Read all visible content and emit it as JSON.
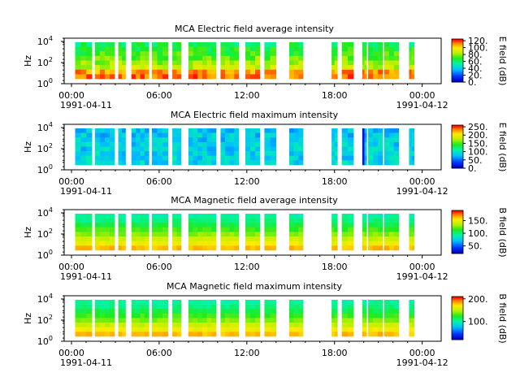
{
  "figure": {
    "instrument": "MCA"
  },
  "chart_data": [
    {
      "type": "heatmap",
      "title": "MCA  Electric field average intensity",
      "ylabel": "Hz",
      "y_scale": "log",
      "y_ticks": [
        "10^0",
        "10^2",
        "10^4"
      ],
      "x_ticks": [
        "00:00",
        "06:00",
        "12:00",
        "18:00",
        "00:00"
      ],
      "x_dates": [
        "1991-04-11",
        "1991-04-12"
      ],
      "colorbar": {
        "label": "E field (dB)",
        "ticks": [
          "0.",
          "20.",
          "40.",
          "60.",
          "80.",
          "100.",
          "120."
        ],
        "range": [
          0,
          125
        ]
      },
      "level": "mid-high"
    },
    {
      "type": "heatmap",
      "title": "MCA  Electric field maximum intensity",
      "ylabel": "Hz",
      "y_scale": "log",
      "y_ticks": [
        "10^0",
        "10^2",
        "10^4"
      ],
      "x_ticks": [
        "00:00",
        "06:00",
        "12:00",
        "18:00",
        "00:00"
      ],
      "x_dates": [
        "1991-04-11",
        "1991-04-12"
      ],
      "colorbar": {
        "label": "E field (dB)",
        "ticks": [
          "0.",
          "50.",
          "100.",
          "150.",
          "200.",
          "250."
        ],
        "range": [
          0,
          260
        ]
      },
      "level": "low"
    },
    {
      "type": "heatmap",
      "title": "MCA  Magnetic field average intensity",
      "ylabel": "Hz",
      "y_scale": "log",
      "y_ticks": [
        "10^0",
        "10^2",
        "10^4"
      ],
      "x_ticks": [
        "00:00",
        "06:00",
        "12:00",
        "18:00",
        "00:00"
      ],
      "x_dates": [
        "1991-04-11",
        "1991-04-12"
      ],
      "colorbar": {
        "label": "B field (dB)",
        "ticks": [
          "50.",
          "100.",
          "150."
        ],
        "range": [
          20,
          190
        ]
      },
      "level": "mid"
    },
    {
      "type": "heatmap",
      "title": "MCA  Magnetic field maximum intensity",
      "ylabel": "Hz",
      "y_scale": "log",
      "y_ticks": [
        "10^0",
        "10^2",
        "10^4"
      ],
      "x_ticks": [
        "00:00",
        "06:00",
        "12:00",
        "18:00",
        "00:00"
      ],
      "x_dates": [
        "1991-04-11",
        "1991-04-12"
      ],
      "colorbar": {
        "label": "B field (dB)",
        "ticks": [
          "100.",
          "200."
        ],
        "range": [
          20,
          210
        ]
      },
      "level": "mid"
    }
  ],
  "data_passes_hours": [
    [
      0.25,
      1.4
    ],
    [
      1.6,
      2.95
    ],
    [
      3.2,
      3.7
    ],
    [
      4.1,
      5.3
    ],
    [
      5.5,
      6.6
    ],
    [
      6.9,
      7.5
    ],
    [
      8.0,
      9.9
    ],
    [
      10.2,
      11.45
    ],
    [
      11.9,
      12.9
    ],
    [
      13.2,
      14.0
    ],
    [
      14.9,
      15.85
    ],
    [
      17.8,
      18.2
    ],
    [
      18.5,
      19.3
    ],
    [
      19.9,
      20.2
    ],
    [
      20.3,
      21.3
    ],
    [
      21.4,
      22.4
    ],
    [
      23.1,
      23.45
    ]
  ]
}
